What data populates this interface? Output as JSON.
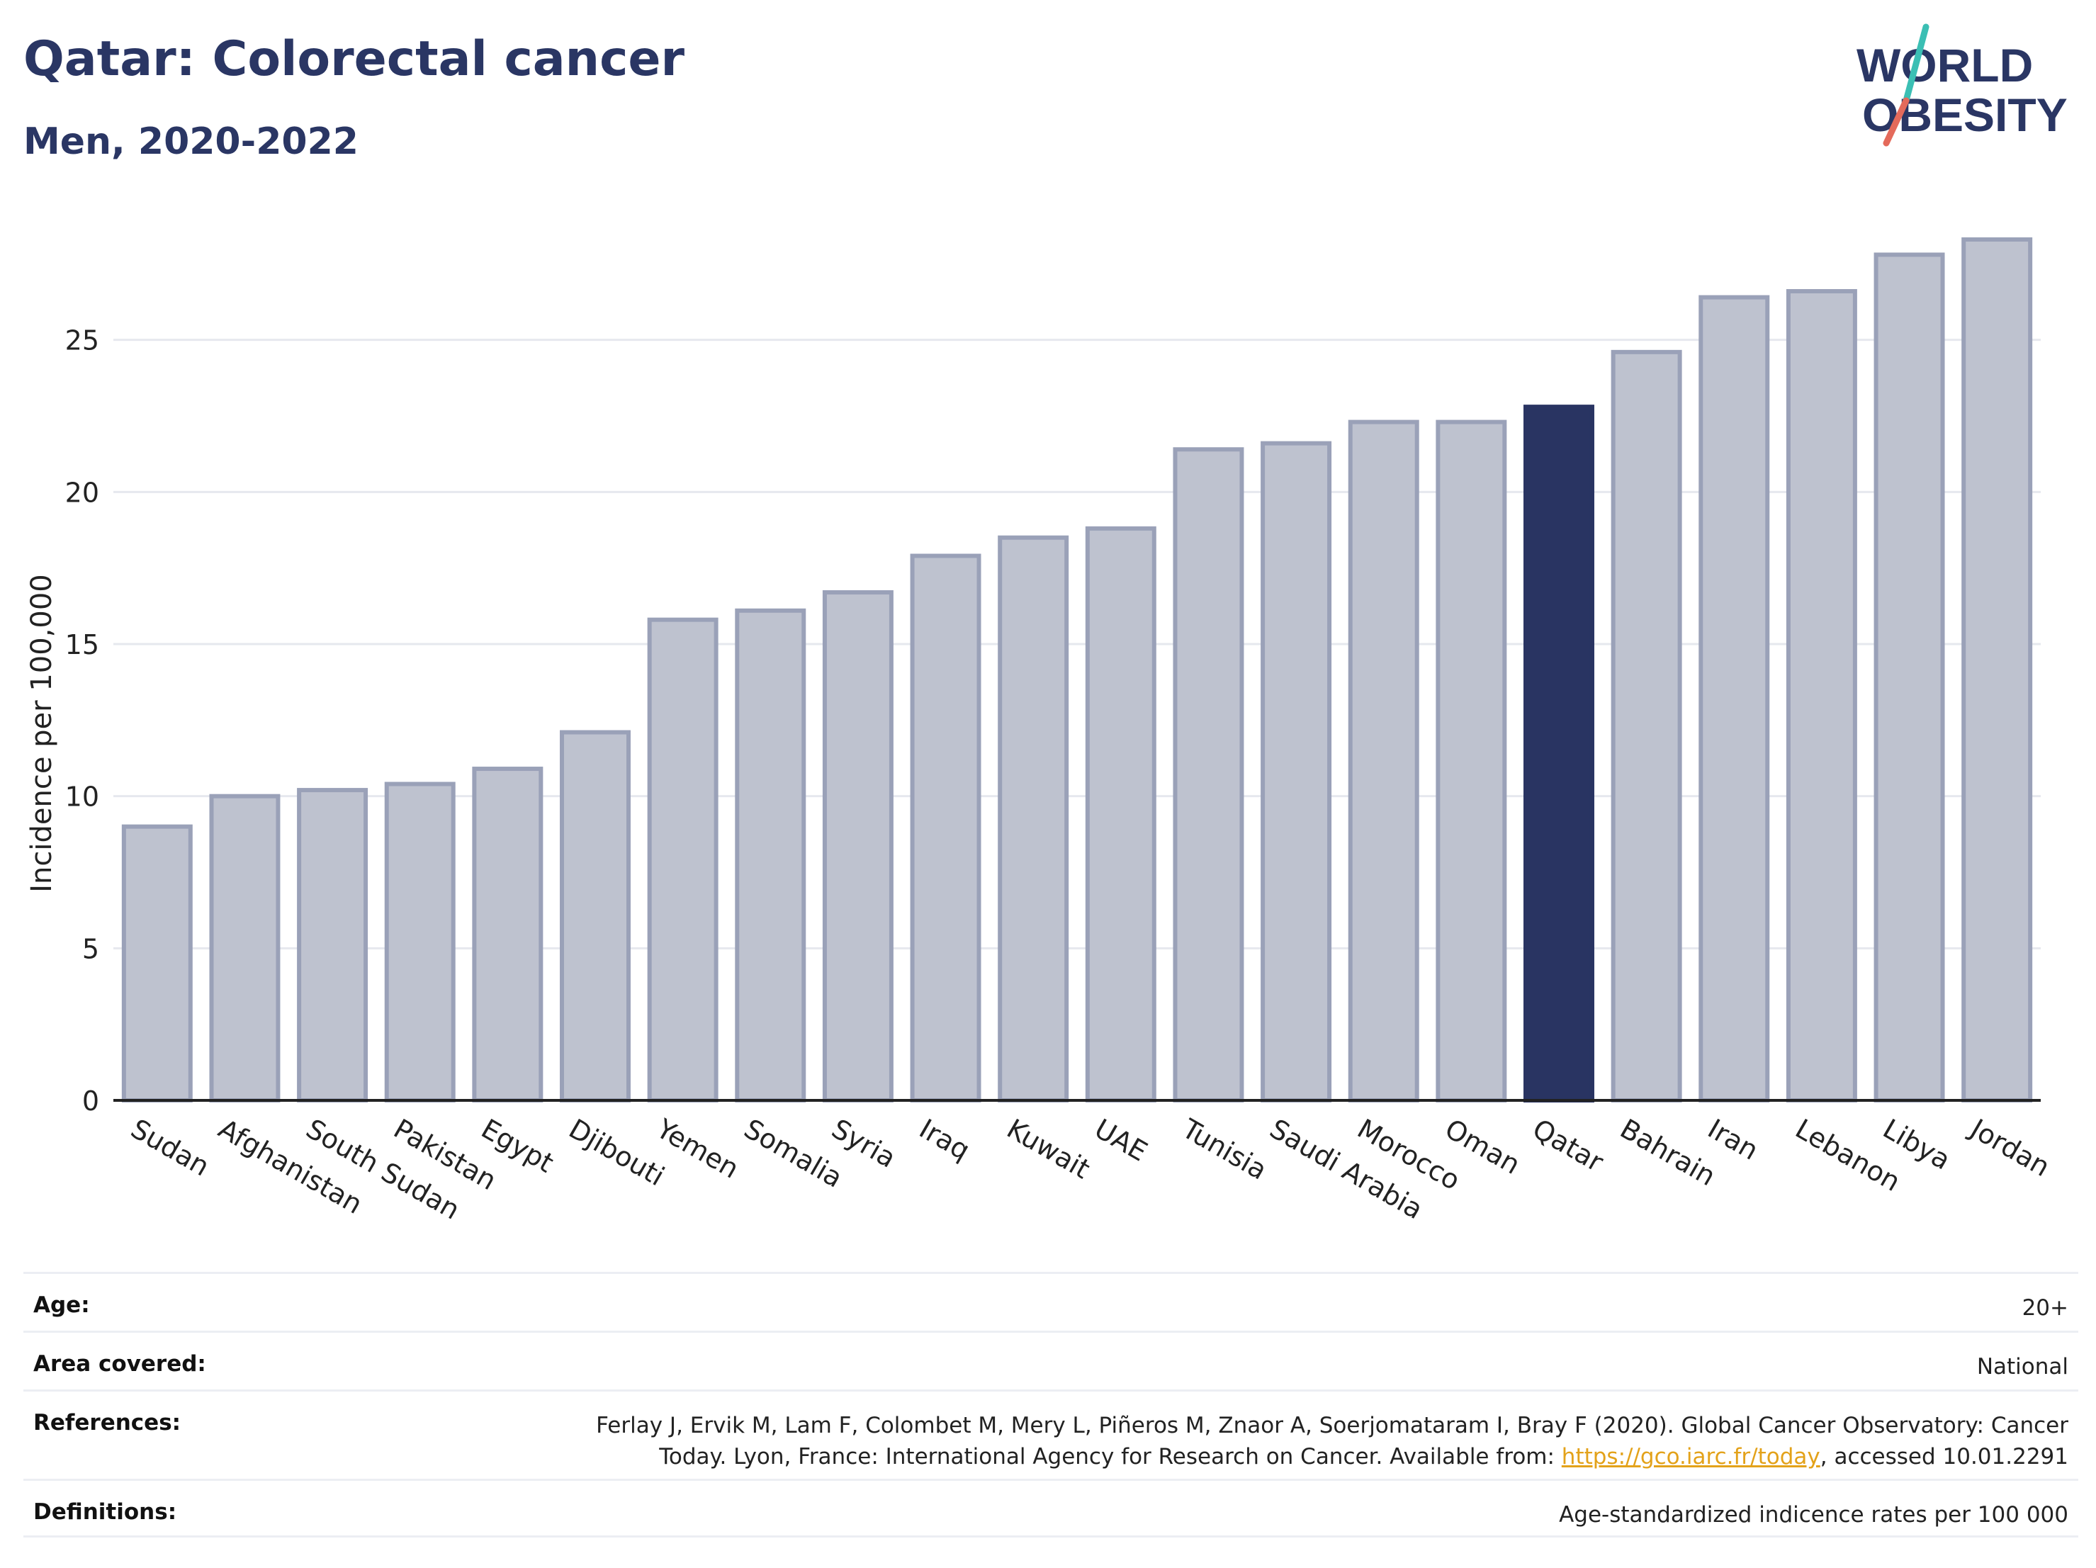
{
  "title": "Qatar: Colorectal cancer",
  "subtitle": "Men, 2020-2022",
  "logo": {
    "line1": "WORLD",
    "line2": "OBESITY",
    "accent_colors": [
      "#3bbfb4",
      "#e46a5b"
    ]
  },
  "chart_data": {
    "type": "bar",
    "categories": [
      "Sudan",
      "Afghanistan",
      "South Sudan",
      "Pakistan",
      "Egypt",
      "Djibouti",
      "Yemen",
      "Somalia",
      "Syria",
      "Iraq",
      "Kuwait",
      "UAE",
      "Tunisia",
      "Saudi Arabia",
      "Morocco",
      "Oman",
      "Qatar",
      "Bahrain",
      "Iran",
      "Lebanon",
      "Libya",
      "Jordan"
    ],
    "values": [
      9.0,
      10.0,
      10.2,
      10.4,
      10.9,
      12.1,
      15.8,
      16.1,
      16.7,
      17.9,
      18.5,
      18.8,
      21.4,
      21.6,
      22.3,
      22.3,
      22.8,
      24.6,
      26.4,
      26.6,
      27.8,
      28.3
    ],
    "highlight": "Qatar",
    "ylabel": "Incidence per 100,000",
    "yticks": [
      0,
      5,
      10,
      15,
      20,
      25
    ],
    "ylim": [
      0,
      28.3
    ],
    "grid": true,
    "colors": {
      "bar": "#bec2cf",
      "bar_edge": "#9aa1b8",
      "highlight": "#293462",
      "grid": "#e6e8ee",
      "axis": "#222222"
    }
  },
  "meta": [
    {
      "label": "Age:",
      "value": "20+"
    },
    {
      "label": "Area covered:",
      "value": "National"
    },
    {
      "label": "References:",
      "value_line1": "Ferlay J, Ervik M, Lam F, Colombet M, Mery L, Piñeros M, Znaor A, Soerjomataram I, Bray F (2020). Global Cancer Observatory: Cancer",
      "value_line2_pre": "Today. Lyon, France: International Agency for Research on Cancer. Available from: ",
      "link": "https://gco.iarc.fr/today",
      "value_line2_post": ", accessed 10.01.2291"
    },
    {
      "label": "Definitions:",
      "value": "Age-standardized indicence rates per 100 000"
    }
  ]
}
